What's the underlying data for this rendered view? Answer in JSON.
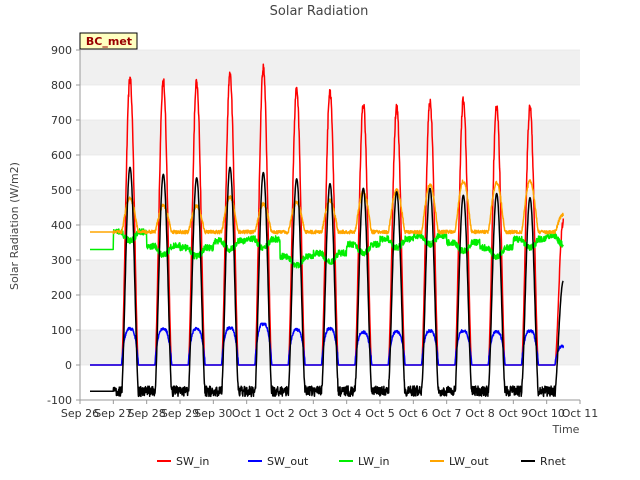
{
  "chart_data": {
    "type": "line",
    "title": "Solar Radiation",
    "xlabel": "Time",
    "ylabel": "Solar Radiation (W/m2)",
    "ylim": [
      -100,
      900
    ],
    "yticks": [
      -100,
      0,
      100,
      200,
      300,
      400,
      500,
      600,
      700,
      800,
      900
    ],
    "xlim": [
      "2023-09-26",
      "2023-10-11"
    ],
    "xtick_labels": [
      "Sep 26",
      "Sep 27",
      "Sep 28",
      "Sep 29",
      "Sep 30",
      "Oct 1",
      "Oct 2",
      "Oct 3",
      "Oct 4",
      "Oct 5",
      "Oct 6",
      "Oct 7",
      "Oct 8",
      "Oct 9",
      "Oct 10",
      "Oct 11"
    ],
    "grid": "horizontal bands",
    "legend_position": "bottom",
    "site_badge": "BC_met",
    "days": [
      "Sep 27",
      "Sep 28",
      "Sep 29",
      "Sep 30",
      "Oct 1",
      "Oct 2",
      "Oct 3",
      "Oct 4",
      "Oct 5",
      "Oct 6",
      "Oct 7",
      "Oct 8",
      "Oct 9",
      "Oct 10"
    ],
    "series": [
      {
        "name": "SW_in",
        "color": "#ff0000",
        "daily_peak": [
          820,
          812,
          808,
          830,
          850,
          788,
          782,
          748,
          738,
          755,
          755,
          742,
          736,
          410
        ],
        "night": 0
      },
      {
        "name": "SW_out",
        "color": "#0000ff",
        "daily_peak": [
          115,
          114,
          115,
          118,
          130,
          112,
          115,
          104,
          105,
          108,
          108,
          105,
          108,
          60
        ],
        "night": 0
      },
      {
        "name": "LW_in",
        "color": "#00ee00",
        "daily_level": [
          380,
          340,
          335,
          355,
          360,
          310,
          320,
          345,
          360,
          370,
          350,
          335,
          360,
          370
        ],
        "night": 330
      },
      {
        "name": "LW_out",
        "color": "#ffa500",
        "daily_peak": [
          475,
          455,
          455,
          480,
          460,
          465,
          470,
          495,
          500,
          515,
          525,
          520,
          525,
          430
        ],
        "night": 380
      },
      {
        "name": "Rnet",
        "color": "#000000",
        "daily_peak": [
          565,
          545,
          535,
          565,
          550,
          532,
          518,
          505,
          495,
          505,
          485,
          490,
          478,
          240
        ],
        "night": -75
      }
    ]
  }
}
